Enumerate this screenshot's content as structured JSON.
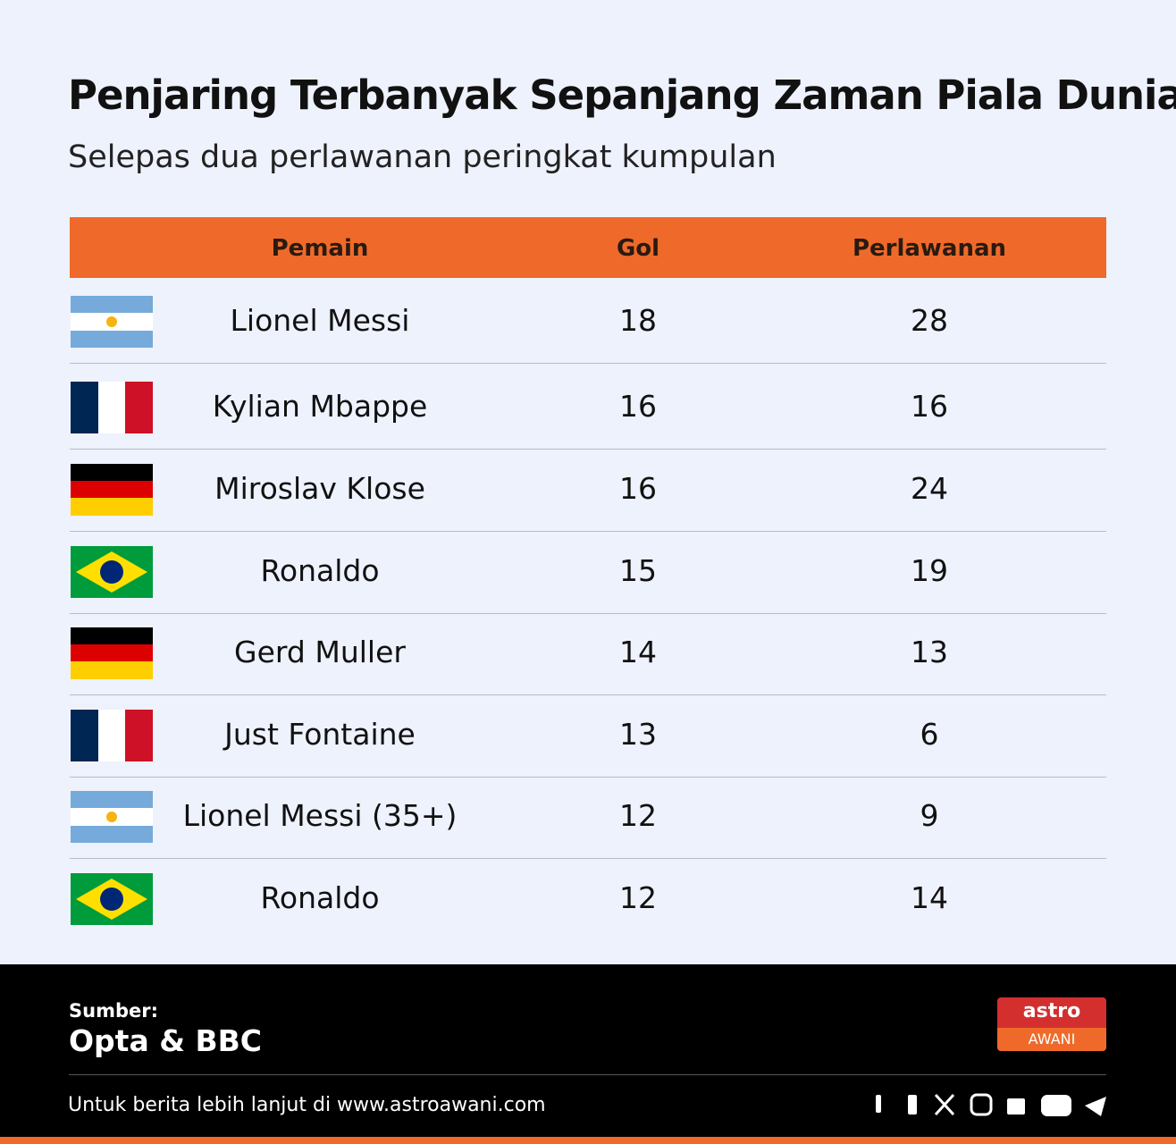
{
  "header": {
    "title": "Penjaring Terbanyak Sepanjang Zaman Piala Dunia",
    "subtitle": "Selepas dua perlawanan peringkat kumpulan"
  },
  "table": {
    "columns": [
      "Pemain",
      "Gol",
      "Perlawanan"
    ],
    "rows": [
      [
        "Lionel Messi",
        "18",
        "28"
      ],
      [
        "Kylian Mbappe",
        "16",
        "16"
      ],
      [
        "Miroslav Klose",
        "16",
        "24"
      ],
      [
        "Ronaldo",
        "15",
        "19"
      ],
      [
        "Gerd Muller",
        "14",
        "13"
      ],
      [
        "Just Fontaine",
        "13",
        "6"
      ],
      [
        "Lionel Messi (35+)",
        "12",
        "9"
      ],
      [
        "Ronaldo",
        "12",
        "14"
      ]
    ]
  },
  "footer": {
    "source_label": "Sumber:",
    "source": "Opta & BBC",
    "logo_top": "astro",
    "logo_bottom": "AWANI",
    "note": "Untuk berita lebih lanjut di www.astroawani.com"
  }
}
